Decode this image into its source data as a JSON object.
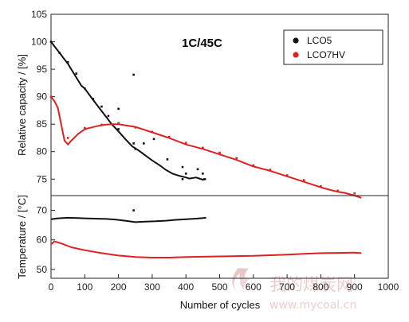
{
  "colors": {
    "LCO5": "#111111",
    "LCO7HV": "#e02020",
    "axis": "#222222",
    "watermark": "#e9c9c9"
  },
  "watermark": {
    "icon": "flame-logo-icon",
    "text_cn": "我的煤炭网",
    "text_url": "www.mycoal.cn"
  },
  "chart_data": [
    {
      "type": "scatter",
      "title": "",
      "annotation": "1C/45C",
      "xlabel": "",
      "ylabel": "Relative capacity / [%]",
      "xlim": [
        0,
        1000
      ],
      "ylim": [
        72,
        105
      ],
      "yticks": [
        75,
        80,
        85,
        90,
        95,
        100,
        105
      ],
      "grid": false,
      "legend_position": "top-right",
      "series": [
        {
          "name": "LCO5",
          "color_key": "LCO5",
          "line": [
            [
              0,
              100
            ],
            [
              10,
              99.2
            ],
            [
              20,
              98.4
            ],
            [
              30,
              97.6
            ],
            [
              40,
              96.8
            ],
            [
              50,
              96
            ],
            [
              60,
              95
            ],
            [
              70,
              94
            ],
            [
              80,
              93
            ],
            [
              90,
              92
            ],
            [
              100,
              91.5
            ],
            [
              120,
              89.8
            ],
            [
              140,
              88.2
            ],
            [
              160,
              86.6
            ],
            [
              180,
              85
            ],
            [
              200,
              83.7
            ],
            [
              220,
              82.3
            ],
            [
              240,
              81
            ],
            [
              260,
              80.2
            ],
            [
              280,
              79.3
            ],
            [
              300,
              78.4
            ],
            [
              320,
              77.6
            ],
            [
              340,
              76.7
            ],
            [
              360,
              76
            ],
            [
              380,
              75.6
            ],
            [
              400,
              75.3
            ],
            [
              410,
              75.1
            ],
            [
              430,
              75.3
            ],
            [
              450,
              74.9
            ],
            [
              460,
              75
            ]
          ],
          "points": [
            [
              0,
              100
            ],
            [
              25,
              98
            ],
            [
              50,
              96.3
            ],
            [
              75,
              94.2
            ],
            [
              100,
              91.5
            ],
            [
              125,
              89.6
            ],
            [
              150,
              88.2
            ],
            [
              170,
              86.5
            ],
            [
              200,
              87.8
            ],
            [
              200,
              84.1
            ],
            [
              245,
              94
            ],
            [
              245,
              81.5
            ],
            [
              250,
              80.5
            ],
            [
              275,
              81.5
            ],
            [
              305,
              82.3
            ],
            [
              345,
              78.6
            ],
            [
              390,
              77.2
            ],
            [
              390,
              75
            ],
            [
              400,
              76
            ],
            [
              435,
              76.8
            ],
            [
              450,
              76
            ],
            [
              455,
              75
            ]
          ]
        },
        {
          "name": "LCO7HV",
          "color_key": "LCO7HV",
          "line": [
            [
              0,
              90
            ],
            [
              10,
              89.2
            ],
            [
              20,
              88
            ],
            [
              30,
              85
            ],
            [
              40,
              82
            ],
            [
              50,
              81.3
            ],
            [
              60,
              82
            ],
            [
              80,
              83.2
            ],
            [
              100,
              84.1
            ],
            [
              120,
              84.4
            ],
            [
              140,
              84.7
            ],
            [
              160,
              84.9
            ],
            [
              180,
              85
            ],
            [
              200,
              85
            ],
            [
              220,
              84.8
            ],
            [
              250,
              84.5
            ],
            [
              300,
              83.5
            ],
            [
              350,
              82.5
            ],
            [
              400,
              81.3
            ],
            [
              450,
              80.5
            ],
            [
              500,
              79.5
            ],
            [
              550,
              78.5
            ],
            [
              600,
              77.3
            ],
            [
              650,
              76.5
            ],
            [
              700,
              75.5
            ],
            [
              750,
              74.5
            ],
            [
              800,
              73.5
            ],
            [
              830,
              73
            ],
            [
              850,
              72.7
            ],
            [
              870,
              72.5
            ],
            [
              900,
              72
            ],
            [
              920,
              71.6
            ]
          ],
          "points": [
            [
              0,
              90
            ],
            [
              50,
              82.5
            ],
            [
              100,
              84.3
            ],
            [
              150,
              84.9
            ],
            [
              200,
              85.2
            ],
            [
              250,
              84.4
            ],
            [
              300,
              83.6
            ],
            [
              350,
              82.7
            ],
            [
              400,
              81.6
            ],
            [
              450,
              80.7
            ],
            [
              500,
              79.8
            ],
            [
              550,
              78.8
            ],
            [
              600,
              77.5
            ],
            [
              650,
              76.7
            ],
            [
              700,
              75.7
            ],
            [
              750,
              74.8
            ],
            [
              800,
              73.7
            ],
            [
              850,
              72.9
            ],
            [
              900,
              72.4
            ]
          ]
        }
      ]
    },
    {
      "type": "line",
      "title": "",
      "xlabel": "Number of cycles",
      "ylabel": "Temperature / [°C]",
      "xlim": [
        0,
        1000
      ],
      "ylim": [
        47,
        75
      ],
      "xticks": [
        0,
        100,
        200,
        300,
        400,
        500,
        600,
        700,
        800,
        900,
        1000
      ],
      "yticks": [
        50,
        60,
        70
      ],
      "grid": false,
      "series": [
        {
          "name": "LCO5",
          "color_key": "LCO5",
          "line": [
            [
              0,
              67
            ],
            [
              20,
              67.3
            ],
            [
              50,
              67.5
            ],
            [
              80,
              67.4
            ],
            [
              100,
              67.3
            ],
            [
              130,
              67.2
            ],
            [
              160,
              67.1
            ],
            [
              190,
              66.9
            ],
            [
              220,
              66.5
            ],
            [
              250,
              66
            ],
            [
              280,
              66.2
            ],
            [
              310,
              66.3
            ],
            [
              340,
              66.5
            ],
            [
              370,
              66.8
            ],
            [
              400,
              67
            ],
            [
              430,
              67.2
            ],
            [
              460,
              67.5
            ]
          ],
          "points": [
            [
              245,
              70
            ]
          ]
        },
        {
          "name": "LCO7HV",
          "color_key": "LCO7HV",
          "line": [
            [
              0,
              58.5
            ],
            [
              10,
              59.5
            ],
            [
              30,
              58.8
            ],
            [
              60,
              57.5
            ],
            [
              100,
              56.5
            ],
            [
              150,
              55.5
            ],
            [
              200,
              54.7
            ],
            [
              250,
              54.2
            ],
            [
              300,
              54
            ],
            [
              350,
              54
            ],
            [
              400,
              54.2
            ],
            [
              450,
              54.3
            ],
            [
              500,
              54.4
            ],
            [
              550,
              54.5
            ],
            [
              600,
              54.6
            ],
            [
              650,
              54.8
            ],
            [
              700,
              55
            ],
            [
              750,
              55.3
            ],
            [
              800,
              55.5
            ],
            [
              850,
              55.6
            ],
            [
              900,
              55.7
            ],
            [
              920,
              55.5
            ]
          ],
          "points": []
        }
      ]
    }
  ]
}
